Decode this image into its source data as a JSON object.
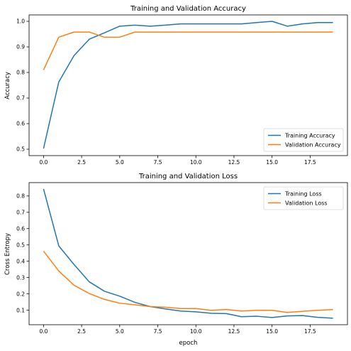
{
  "chart_data": [
    {
      "type": "line",
      "title": "Training and Validation Accuracy",
      "xlabel": "",
      "ylabel": "Accuracy",
      "x": [
        0,
        1,
        2,
        3,
        4,
        5,
        6,
        7,
        8,
        9,
        10,
        11,
        12,
        13,
        14,
        15,
        16,
        17,
        18,
        19
      ],
      "xlim": [
        -0.95,
        19.95
      ],
      "ylim": [
        0.475,
        1.025
      ],
      "xticks": [
        0.0,
        2.5,
        5.0,
        7.5,
        10.0,
        12.5,
        15.0,
        17.5
      ],
      "xtick_labels": [
        "0.0",
        "2.5",
        "5.0",
        "7.5",
        "10.0",
        "12.5",
        "15.0",
        "17.5"
      ],
      "yticks": [
        0.5,
        0.6,
        0.7,
        0.8,
        0.9,
        1.0
      ],
      "ytick_labels": [
        "0.5",
        "0.6",
        "0.7",
        "0.8",
        "0.9",
        "1.0"
      ],
      "grid": false,
      "legend_position": "lower-right",
      "series": [
        {
          "name": "Training Accuracy",
          "color": "#1f77b4",
          "values": [
            0.503,
            0.763,
            0.866,
            0.93,
            0.955,
            0.981,
            0.985,
            0.981,
            0.985,
            0.99,
            0.99,
            0.99,
            0.99,
            0.99,
            0.995,
            1.0,
            0.981,
            0.99,
            0.995,
            0.995
          ]
        },
        {
          "name": "Validation Accuracy",
          "color": "#ff7f0e",
          "values": [
            0.81,
            0.938,
            0.958,
            0.958,
            0.938,
            0.938,
            0.958,
            0.958,
            0.958,
            0.958,
            0.958,
            0.958,
            0.958,
            0.958,
            0.958,
            0.958,
            0.958,
            0.958,
            0.958,
            0.958
          ]
        }
      ]
    },
    {
      "type": "line",
      "title": "Training and Validation Loss",
      "xlabel": "epoch",
      "ylabel": "Cross Entropy",
      "x": [
        0,
        1,
        2,
        3,
        4,
        5,
        6,
        7,
        8,
        9,
        10,
        11,
        12,
        13,
        14,
        15,
        16,
        17,
        18,
        19
      ],
      "xlim": [
        -0.95,
        19.95
      ],
      "ylim": [
        0.011,
        0.882
      ],
      "xticks": [
        0.0,
        2.5,
        5.0,
        7.5,
        10.0,
        12.5,
        15.0,
        17.5
      ],
      "xtick_labels": [
        "0.0",
        "2.5",
        "5.0",
        "7.5",
        "10.0",
        "12.5",
        "15.0",
        "17.5"
      ],
      "yticks": [
        0.1,
        0.2,
        0.3,
        0.4,
        0.5,
        0.6,
        0.7,
        0.8
      ],
      "ytick_labels": [
        "0.1",
        "0.2",
        "0.3",
        "0.4",
        "0.5",
        "0.6",
        "0.7",
        "0.8"
      ],
      "grid": false,
      "legend_position": "upper-right",
      "series": [
        {
          "name": "Training Loss",
          "color": "#1f77b4",
          "values": [
            0.843,
            0.494,
            0.38,
            0.274,
            0.216,
            0.186,
            0.148,
            0.122,
            0.108,
            0.095,
            0.09,
            0.081,
            0.079,
            0.06,
            0.063,
            0.055,
            0.065,
            0.067,
            0.056,
            0.051
          ]
        },
        {
          "name": "Validation Loss",
          "color": "#ff7f0e",
          "values": [
            0.462,
            0.34,
            0.253,
            0.202,
            0.166,
            0.143,
            0.133,
            0.122,
            0.118,
            0.11,
            0.11,
            0.099,
            0.104,
            0.095,
            0.099,
            0.099,
            0.086,
            0.093,
            0.099,
            0.104
          ]
        }
      ]
    }
  ]
}
